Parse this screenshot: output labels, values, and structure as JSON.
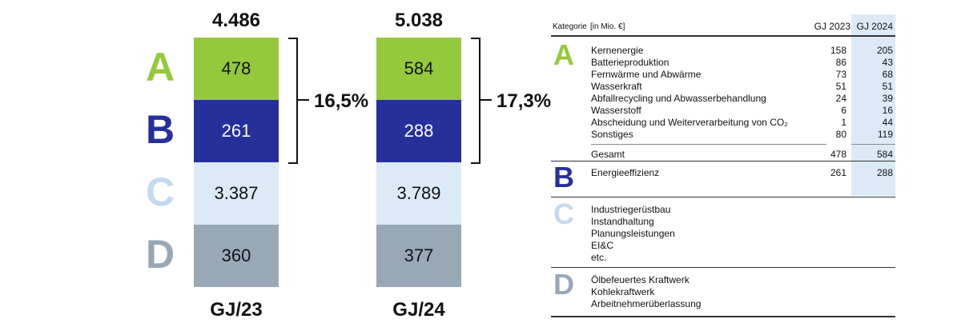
{
  "letters": [
    "A",
    "B",
    "C",
    "D"
  ],
  "columns": [
    {
      "total": "4.486",
      "segments": [
        "478",
        "261",
        "3.387",
        "360"
      ],
      "share": "16,5%",
      "label": "GJ/23"
    },
    {
      "total": "5.038",
      "segments": [
        "584",
        "288",
        "3.789",
        "377"
      ],
      "share": "17,3%",
      "label": "GJ/24"
    }
  ],
  "table": {
    "header": {
      "category": "Kategorie",
      "unit": "[in Mio. €]",
      "years": [
        "GJ 2023",
        "GJ 2024"
      ]
    },
    "groups": [
      {
        "rows": [
          {
            "name": "Kernenergie",
            "values": [
              "158",
              "205"
            ]
          },
          {
            "name": "Batterieproduktion",
            "values": [
              "86",
              "43"
            ]
          },
          {
            "name": "Fernwärme und Abwärme",
            "values": [
              "73",
              "68"
            ]
          },
          {
            "name": "Wasserkraft",
            "values": [
              "51",
              "51"
            ]
          },
          {
            "name": "Abfallrecycling und Abwasserbehandlung",
            "values": [
              "24",
              "39"
            ]
          },
          {
            "name": "Wasserstoff",
            "values": [
              "6",
              "16"
            ]
          },
          {
            "name": "Abscheidung und Weiterverarbeitung von CO₂",
            "values": [
              "1",
              "44"
            ]
          },
          {
            "name": "Sonstiges",
            "values": [
              "80",
              "119"
            ]
          }
        ],
        "total": {
          "name": "Gesamt",
          "values": [
            "478",
            "584"
          ]
        }
      },
      {
        "rows": [
          {
            "name": "Energieeffizienz",
            "values": [
              "261",
              "288"
            ]
          }
        ]
      },
      {
        "rows": [
          {
            "name": "Industriegerüstbau"
          },
          {
            "name": "Instandhaltung"
          },
          {
            "name": "Planungsleistungen"
          },
          {
            "name": "EI&C"
          },
          {
            "name": "etc."
          }
        ]
      },
      {
        "rows": [
          {
            "name": "Ölbefeuertes Kraftwerk"
          },
          {
            "name": "Kohlekraftwerk"
          },
          {
            "name": "Arbeitnehmerüberlassung"
          }
        ]
      }
    ]
  }
}
